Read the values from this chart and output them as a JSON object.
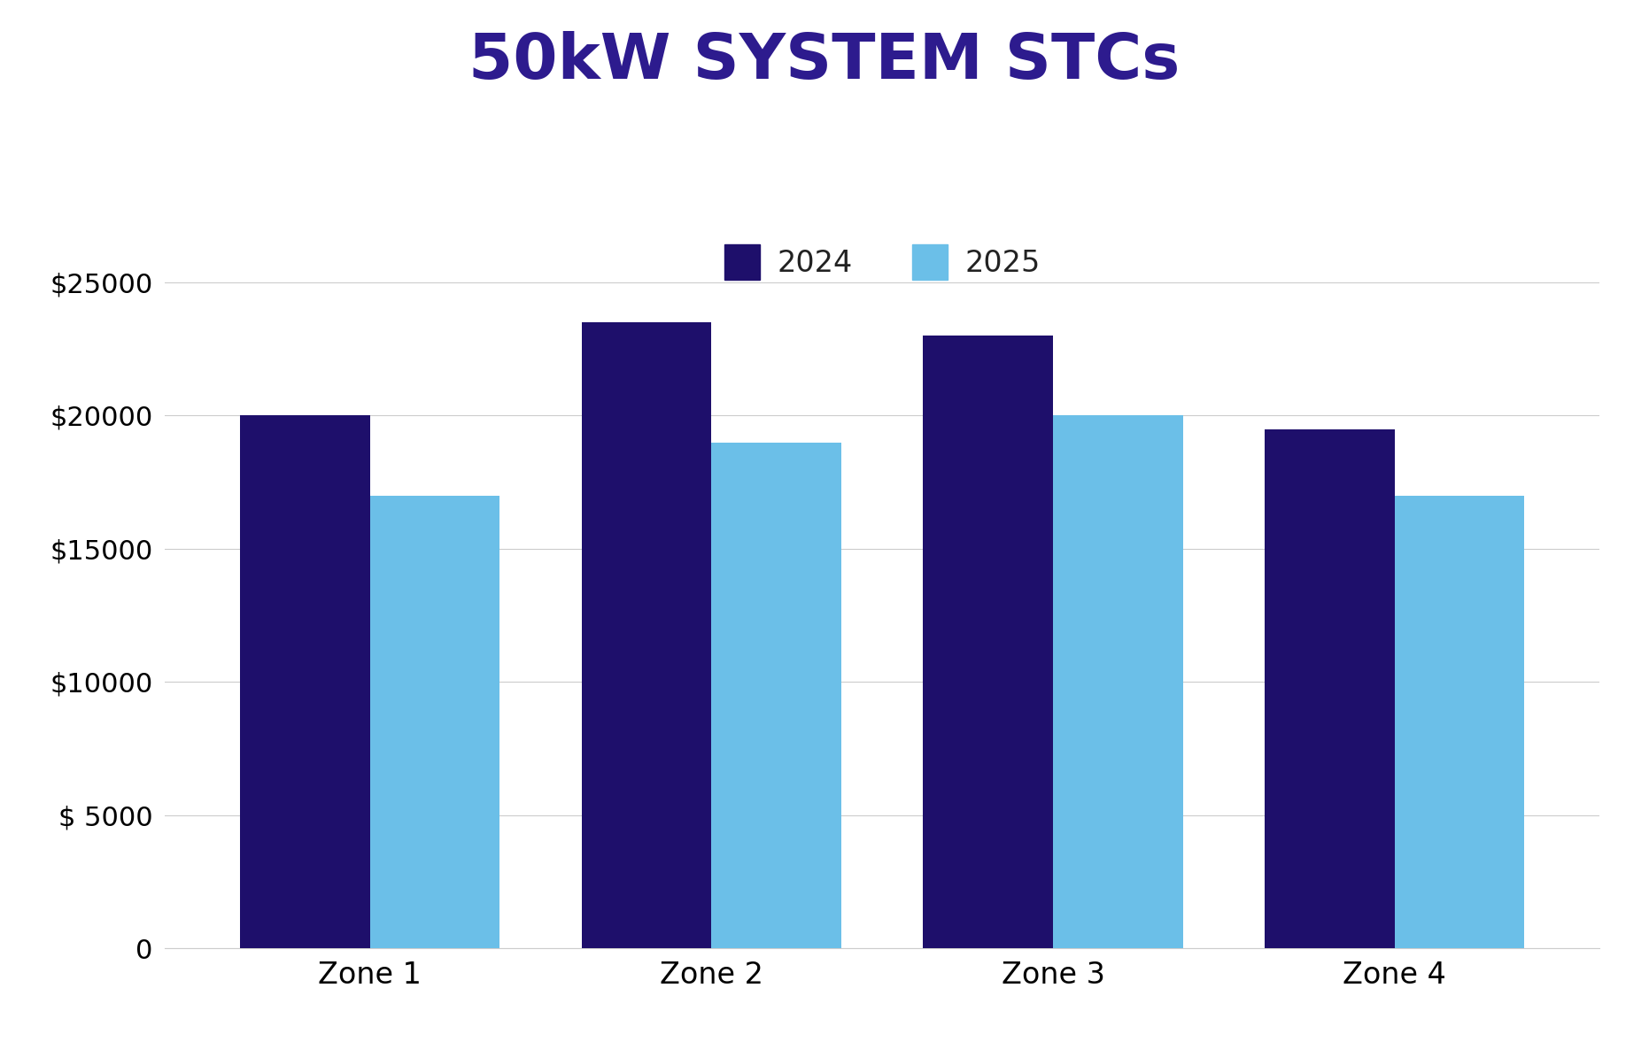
{
  "title": "50kW SYSTEM STCs",
  "title_color": "#2d1b8e",
  "title_fontsize": 52,
  "background_color": "#ffffff",
  "categories": [
    "Zone 1",
    "Zone 2",
    "Zone 3",
    "Zone 4"
  ],
  "values_2024": [
    20000,
    23500,
    23000,
    19500
  ],
  "values_2025": [
    17000,
    19000,
    20000,
    17000
  ],
  "color_2024": "#1e0f6b",
  "color_2025": "#6bbfe8",
  "legend_labels": [
    "2024",
    "2025"
  ],
  "ylim": [
    0,
    27000
  ],
  "yticks": [
    0,
    5000,
    10000,
    15000,
    20000,
    25000
  ],
  "ytick_labels": [
    "0",
    "$ 5000",
    "$10000",
    "$15000",
    "$20000",
    "$25000"
  ],
  "tick_fontsize": 22,
  "xtick_fontsize": 24,
  "legend_fontsize": 24,
  "bar_width": 0.38,
  "grid_color": "#cccccc",
  "grid_linewidth": 0.8,
  "axis_linecolor": "#cccccc"
}
